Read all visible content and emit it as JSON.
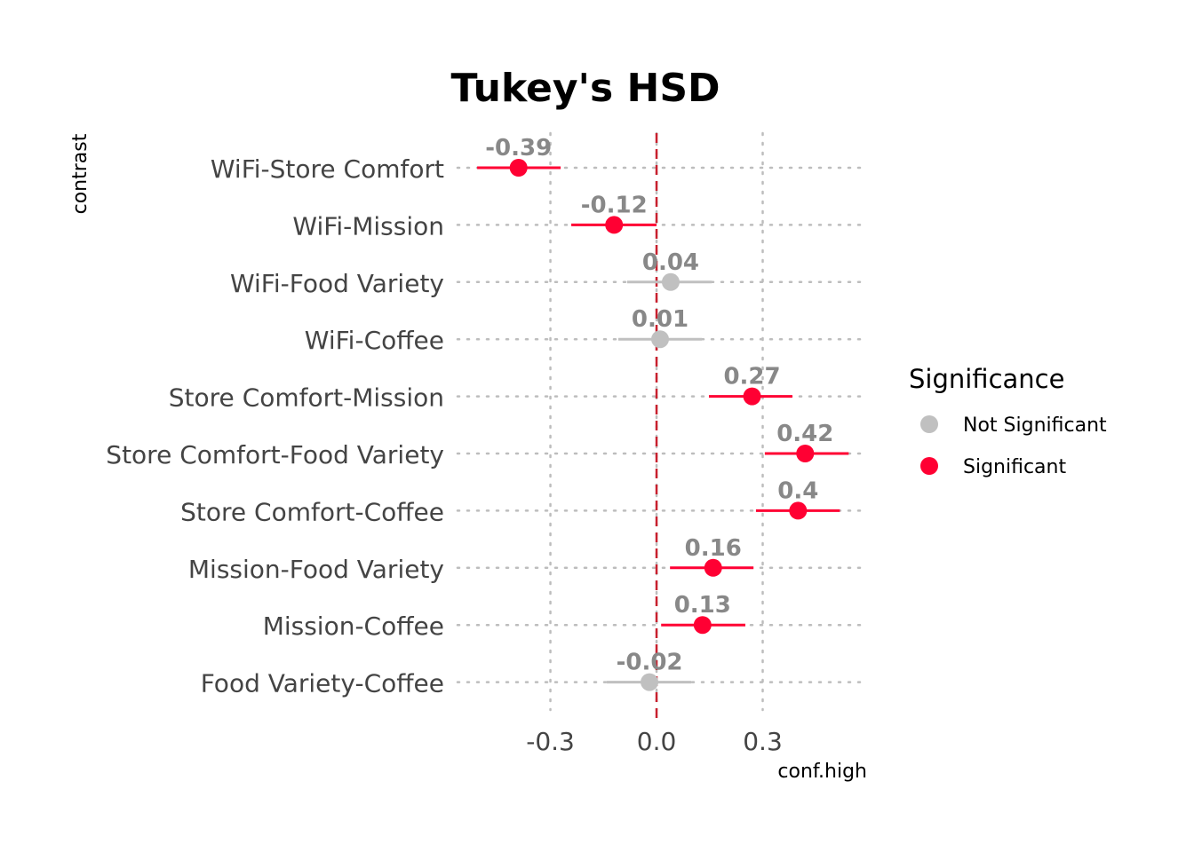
{
  "chart_data": {
    "type": "scatter",
    "subtype": "point-range",
    "title": "Tukey's HSD",
    "xlabel": "conf.high",
    "ylabel": "contrast",
    "xlim": [
      -0.5625,
      0.5925
    ],
    "xticks": [
      -0.3,
      0.0,
      0.3
    ],
    "xtick_labels": [
      "-0.3",
      "0.0",
      "0.3"
    ],
    "reference_line": 0,
    "grid": true,
    "legend": {
      "title": "Significance",
      "placement": "right",
      "entries": [
        {
          "label": "Not Significant",
          "color": "#c0c0c0"
        },
        {
          "label": "Significant",
          "color": "#ff0033"
        }
      ]
    },
    "rows": [
      {
        "contrast": "WiFi-Store Comfort",
        "estimate": -0.39,
        "label": "-0.39",
        "conf_low": -0.507,
        "conf_high": -0.271,
        "significance": "Significant"
      },
      {
        "contrast": "WiFi-Mission",
        "estimate": -0.12,
        "label": "-0.12",
        "conf_low": -0.241,
        "conf_high": 0.0,
        "significance": "Significant"
      },
      {
        "contrast": "WiFi-Food Variety",
        "estimate": 0.04,
        "label": "0.04",
        "conf_low": -0.083,
        "conf_high": 0.156,
        "significance": "Not Significant"
      },
      {
        "contrast": "WiFi-Coffee",
        "estimate": 0.01,
        "label": "0.01",
        "conf_low": -0.108,
        "conf_high": 0.128,
        "significance": "Not Significant"
      },
      {
        "contrast": "Store Comfort-Mission",
        "estimate": 0.27,
        "label": "0.27",
        "conf_low": 0.148,
        "conf_high": 0.384,
        "significance": "Significant"
      },
      {
        "contrast": "Store Comfort-Food Variety",
        "estimate": 0.42,
        "label": "0.42",
        "conf_low": 0.306,
        "conf_high": 0.543,
        "significance": "Significant"
      },
      {
        "contrast": "Store Comfort-Coffee",
        "estimate": 0.4,
        "label": "0.4",
        "conf_low": 0.281,
        "conf_high": 0.518,
        "significance": "Significant"
      },
      {
        "contrast": "Mission-Food Variety",
        "estimate": 0.16,
        "label": "0.16",
        "conf_low": 0.038,
        "conf_high": 0.274,
        "significance": "Significant"
      },
      {
        "contrast": "Mission-Coffee",
        "estimate": 0.13,
        "label": "0.13",
        "conf_low": 0.013,
        "conf_high": 0.251,
        "significance": "Significant"
      },
      {
        "contrast": "Food Variety-Coffee",
        "estimate": -0.02,
        "label": "-0.02",
        "conf_low": -0.141,
        "conf_high": 0.098,
        "significance": "Not Significant"
      }
    ],
    "colors": {
      "Significant": "#ff0033",
      "Not Significant": "#c0c0c0",
      "reference": "#c8202e",
      "grid": "#bdbdbd"
    }
  }
}
